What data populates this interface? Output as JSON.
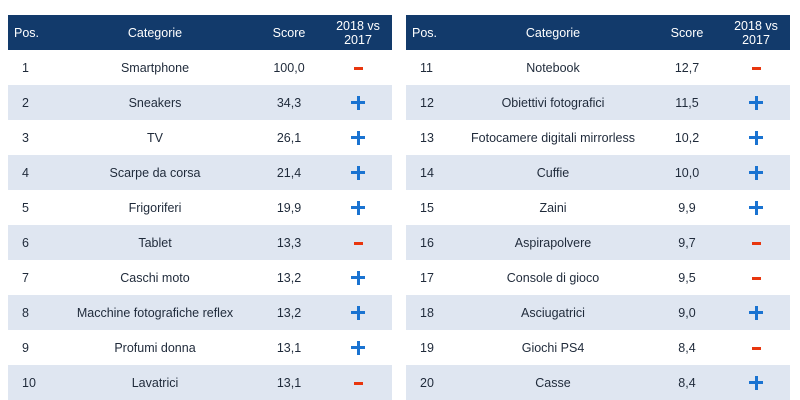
{
  "headers": {
    "pos": "Pos.",
    "category": "Categorie",
    "score": "Score",
    "trend_line1": "2018 vs",
    "trend_line2": "2017"
  },
  "colors": {
    "header_bg": "#123a6b",
    "row_alt_bg": "#dfe6f1",
    "plus_blue": "#1a73d1",
    "minus_red": "#e8360e"
  },
  "icons": {
    "up": "plus-icon",
    "down": "minus-icon"
  },
  "left_rows": [
    {
      "pos": "1",
      "category": "Smartphone",
      "score": "100,0",
      "trend": "down"
    },
    {
      "pos": "2",
      "category": "Sneakers",
      "score": "34,3",
      "trend": "up"
    },
    {
      "pos": "3",
      "category": "TV",
      "score": "26,1",
      "trend": "up"
    },
    {
      "pos": "4",
      "category": "Scarpe da corsa",
      "score": "21,4",
      "trend": "up"
    },
    {
      "pos": "5",
      "category": "Frigoriferi",
      "score": "19,9",
      "trend": "up"
    },
    {
      "pos": "6",
      "category": "Tablet",
      "score": "13,3",
      "trend": "down"
    },
    {
      "pos": "7",
      "category": "Caschi moto",
      "score": "13,2",
      "trend": "up"
    },
    {
      "pos": "8",
      "category": "Macchine fotografiche reflex",
      "score": "13,2",
      "trend": "up"
    },
    {
      "pos": "9",
      "category": "Profumi donna",
      "score": "13,1",
      "trend": "up"
    },
    {
      "pos": "10",
      "category": "Lavatrici",
      "score": "13,1",
      "trend": "down"
    }
  ],
  "right_rows": [
    {
      "pos": "11",
      "category": "Notebook",
      "score": "12,7",
      "trend": "down"
    },
    {
      "pos": "12",
      "category": "Obiettivi fotografici",
      "score": "11,5",
      "trend": "up"
    },
    {
      "pos": "13",
      "category": "Fotocamere digitali mirrorless",
      "score": "10,2",
      "trend": "up"
    },
    {
      "pos": "14",
      "category": "Cuffie",
      "score": "10,0",
      "trend": "up"
    },
    {
      "pos": "15",
      "category": "Zaini",
      "score": "9,9",
      "trend": "up"
    },
    {
      "pos": "16",
      "category": "Aspirapolvere",
      "score": "9,7",
      "trend": "down"
    },
    {
      "pos": "17",
      "category": "Console di gioco",
      "score": "9,5",
      "trend": "down"
    },
    {
      "pos": "18",
      "category": "Asciugatrici",
      "score": "9,0",
      "trend": "up"
    },
    {
      "pos": "19",
      "category": "Giochi PS4",
      "score": "8,4",
      "trend": "down"
    },
    {
      "pos": "20",
      "category": "Casse",
      "score": "8,4",
      "trend": "up"
    }
  ]
}
